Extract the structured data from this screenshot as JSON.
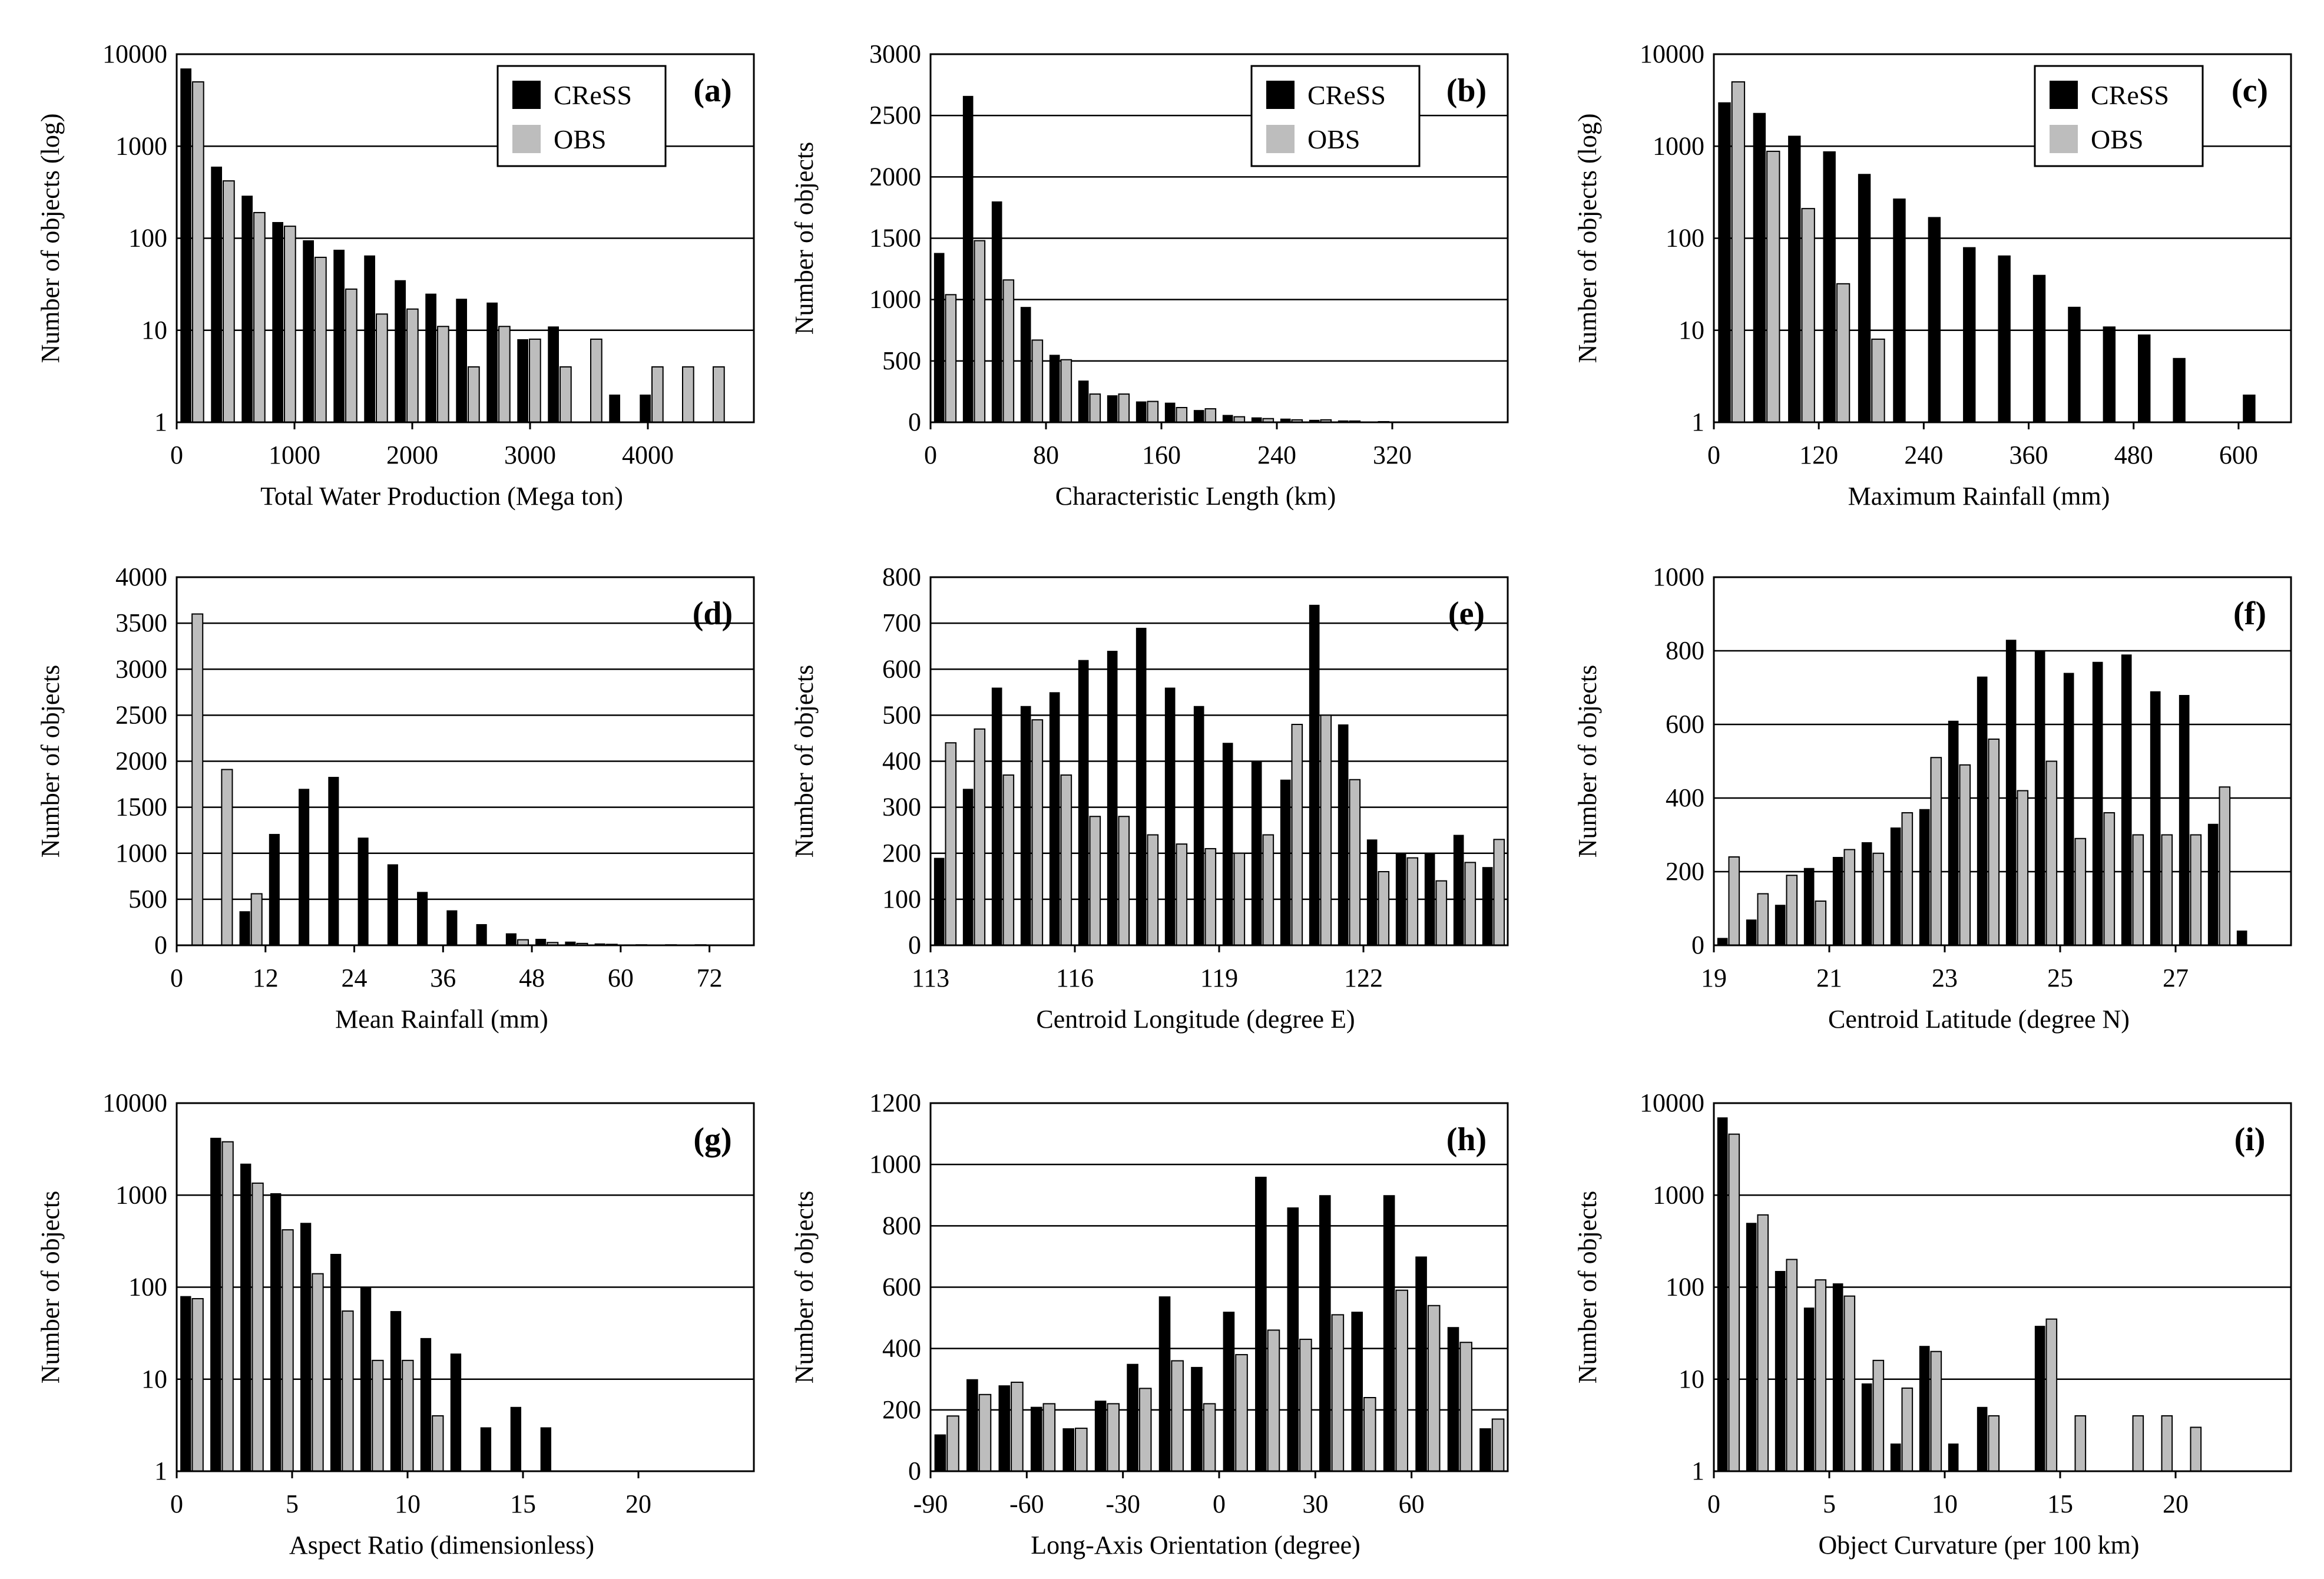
{
  "figure": {
    "panels": [
      "a",
      "b",
      "c",
      "d",
      "e",
      "f",
      "g",
      "h",
      "i"
    ]
  },
  "colors": {
    "cress": "#000000",
    "obs": "#bdbdbd",
    "grid": "#000000",
    "text": "#000000"
  },
  "chart_data": [
    {
      "id": "a",
      "label": "(a)",
      "type": "bar",
      "scale": "log",
      "xlabel": "Total Water Production (Mega ton)",
      "ylabel": "Number of objects (log)",
      "xlim": [
        0,
        4900
      ],
      "ylim": [
        1,
        10000
      ],
      "yticks": [
        1,
        10,
        100,
        1000,
        10000
      ],
      "yticklabels": [
        "1",
        "10",
        "100",
        "1000",
        "10000"
      ],
      "xticks": [
        0,
        1000,
        2000,
        3000,
        4000
      ],
      "xticklabels": [
        "0",
        "1000",
        "2000",
        "3000",
        "4000"
      ],
      "bin_width": 260,
      "legend": {
        "position": "top-right",
        "entries": [
          {
            "name": "CReSS",
            "color": "#000000"
          },
          {
            "name": "OBS",
            "color": "#bdbdbd"
          }
        ]
      },
      "x": [
        130,
        390,
        650,
        910,
        1170,
        1430,
        1690,
        1950,
        2210,
        2470,
        2730,
        2990,
        3250,
        3510,
        3770,
        4030,
        4290,
        4550
      ],
      "series": [
        {
          "name": "CReSS",
          "values": [
            7000,
            600,
            290,
            150,
            95,
            75,
            65,
            35,
            25,
            22,
            20,
            8,
            11,
            0,
            2,
            2,
            0,
            0
          ]
        },
        {
          "name": "OBS",
          "values": [
            5000,
            420,
            190,
            135,
            62,
            28,
            15,
            17,
            11,
            4,
            11,
            8,
            4,
            8,
            0,
            4,
            4,
            4
          ]
        }
      ]
    },
    {
      "id": "b",
      "label": "(b)",
      "type": "bar",
      "scale": "linear",
      "xlabel": "Characteristic Length (km)",
      "ylabel": "Number of objects",
      "xlim": [
        0,
        400
      ],
      "ylim": [
        0,
        3000
      ],
      "yticks": [
        0,
        500,
        1000,
        1500,
        2000,
        2500,
        3000
      ],
      "yticklabels": [
        "0",
        "500",
        "1000",
        "1500",
        "2000",
        "2500",
        "3000"
      ],
      "xticks": [
        0,
        80,
        160,
        240,
        320
      ],
      "xticklabels": [
        "0",
        "80",
        "160",
        "240",
        "320"
      ],
      "bin_width": 20,
      "legend": {
        "position": "top-right",
        "entries": [
          {
            "name": "CReSS",
            "color": "#000000"
          },
          {
            "name": "OBS",
            "color": "#bdbdbd"
          }
        ]
      },
      "x": [
        10,
        30,
        50,
        70,
        90,
        110,
        130,
        150,
        170,
        190,
        210,
        230,
        250,
        270,
        290,
        310,
        330,
        350,
        370,
        390
      ],
      "series": [
        {
          "name": "CReSS",
          "values": [
            1380,
            2660,
            1800,
            940,
            550,
            340,
            220,
            170,
            160,
            100,
            60,
            40,
            30,
            20,
            15,
            5,
            0,
            0,
            0,
            0
          ]
        },
        {
          "name": "OBS",
          "values": [
            1040,
            1480,
            1160,
            670,
            510,
            230,
            230,
            170,
            120,
            110,
            45,
            30,
            20,
            20,
            10,
            5,
            0,
            0,
            0,
            0
          ]
        }
      ]
    },
    {
      "id": "c",
      "label": "(c)",
      "type": "bar",
      "scale": "log",
      "xlabel": "Maximum Rainfall (mm)",
      "ylabel": "Number of objects (log)",
      "xlim": [
        0,
        660
      ],
      "ylim": [
        1,
        10000
      ],
      "yticks": [
        1,
        10,
        100,
        1000,
        10000
      ],
      "yticklabels": [
        "1",
        "10",
        "100",
        "1000",
        "10000"
      ],
      "xticks": [
        0,
        120,
        240,
        360,
        480,
        600
      ],
      "xticklabels": [
        "0",
        "120",
        "240",
        "360",
        "480",
        "600"
      ],
      "bin_width": 40,
      "legend": {
        "position": "top-right",
        "entries": [
          {
            "name": "CReSS",
            "color": "#000000"
          },
          {
            "name": "OBS",
            "color": "#bdbdbd"
          }
        ]
      },
      "x": [
        20,
        60,
        100,
        140,
        180,
        220,
        260,
        300,
        340,
        380,
        420,
        460,
        500,
        540,
        580,
        620
      ],
      "series": [
        {
          "name": "CReSS",
          "values": [
            3000,
            2300,
            1300,
            880,
            500,
            270,
            170,
            80,
            65,
            40,
            18,
            11,
            9,
            5,
            0,
            2
          ]
        },
        {
          "name": "OBS",
          "values": [
            5000,
            880,
            210,
            32,
            8,
            0,
            0,
            0,
            0,
            0,
            0,
            0,
            0,
            0,
            0,
            0
          ]
        }
      ]
    },
    {
      "id": "d",
      "label": "(d)",
      "type": "bar",
      "scale": "linear",
      "xlabel": "Mean Rainfall (mm)",
      "ylabel": "Number of objects",
      "xlim": [
        0,
        78
      ],
      "ylim": [
        0,
        4000
      ],
      "yticks": [
        0,
        500,
        1000,
        1500,
        2000,
        2500,
        3000,
        3500,
        4000
      ],
      "yticklabels": [
        "0",
        "500",
        "1000",
        "1500",
        "2000",
        "2500",
        "3000",
        "3500",
        "4000"
      ],
      "xticks": [
        0,
        12,
        24,
        36,
        48,
        60,
        72
      ],
      "xticklabels": [
        "0",
        "12",
        "24",
        "36",
        "48",
        "60",
        "72"
      ],
      "bin_width": 4,
      "legend": null,
      "x": [
        2,
        6,
        10,
        14,
        18,
        22,
        26,
        30,
        34,
        38,
        42,
        46,
        50,
        54,
        58,
        62,
        66,
        70,
        74
      ],
      "series": [
        {
          "name": "CReSS",
          "values": [
            0,
            0,
            370,
            1210,
            1700,
            1830,
            1170,
            880,
            580,
            380,
            230,
            130,
            70,
            40,
            20,
            10,
            5,
            5,
            5
          ]
        },
        {
          "name": "OBS",
          "values": [
            3600,
            1910,
            560,
            0,
            0,
            0,
            0,
            0,
            0,
            0,
            0,
            60,
            30,
            20,
            10,
            5,
            5,
            5,
            0
          ]
        }
      ]
    },
    {
      "id": "e",
      "label": "(e)",
      "type": "bar",
      "scale": "linear",
      "xlabel": "Centroid Longitude (degree E)",
      "ylabel": "Number of objects",
      "xlim": [
        113,
        125
      ],
      "ylim": [
        0,
        800
      ],
      "yticks": [
        0,
        100,
        200,
        300,
        400,
        500,
        600,
        700,
        800
      ],
      "yticklabels": [
        "0",
        "100",
        "200",
        "300",
        "400",
        "500",
        "600",
        "700",
        "800"
      ],
      "xticks": [
        113,
        116,
        119,
        122
      ],
      "xticklabels": [
        "113",
        "116",
        "119",
        "122"
      ],
      "bin_width": 0.6,
      "legend": null,
      "x": [
        113.3,
        113.9,
        114.5,
        115.1,
        115.7,
        116.3,
        116.9,
        117.5,
        118.1,
        118.7,
        119.3,
        119.9,
        120.5,
        121.1,
        121.7,
        122.3,
        122.9,
        123.5,
        124.1,
        124.7
      ],
      "series": [
        {
          "name": "CReSS",
          "values": [
            190,
            340,
            560,
            520,
            550,
            620,
            640,
            690,
            560,
            520,
            440,
            400,
            360,
            740,
            480,
            230,
            200,
            200,
            240,
            170
          ]
        },
        {
          "name": "OBS",
          "values": [
            440,
            470,
            370,
            490,
            370,
            280,
            280,
            240,
            220,
            210,
            200,
            240,
            480,
            500,
            360,
            160,
            190,
            140,
            180,
            230
          ]
        }
      ]
    },
    {
      "id": "f",
      "label": "(f)",
      "type": "bar",
      "scale": "linear",
      "xlabel": "Centroid Latitude (degree N)",
      "ylabel": "Number of objects",
      "xlim": [
        19,
        29
      ],
      "ylim": [
        0,
        1000
      ],
      "yticks": [
        0,
        200,
        400,
        600,
        800,
        1000
      ],
      "yticklabels": [
        "0",
        "200",
        "400",
        "600",
        "800",
        "1000"
      ],
      "xticks": [
        19,
        21,
        23,
        25,
        27
      ],
      "xticklabels": [
        "19",
        "21",
        "23",
        "25",
        "27"
      ],
      "bin_width": 0.5,
      "legend": null,
      "x": [
        19.25,
        19.75,
        20.25,
        20.75,
        21.25,
        21.75,
        22.25,
        22.75,
        23.25,
        23.75,
        24.25,
        24.75,
        25.25,
        25.75,
        26.25,
        26.75,
        27.25,
        27.75,
        28.25
      ],
      "series": [
        {
          "name": "CReSS",
          "values": [
            20,
            70,
            110,
            210,
            240,
            280,
            320,
            370,
            610,
            730,
            830,
            800,
            740,
            770,
            790,
            690,
            680,
            330,
            40
          ]
        },
        {
          "name": "OBS",
          "values": [
            240,
            140,
            190,
            120,
            260,
            250,
            360,
            510,
            490,
            560,
            420,
            500,
            290,
            360,
            300,
            300,
            300,
            430,
            0
          ]
        }
      ]
    },
    {
      "id": "g",
      "label": "(g)",
      "type": "bar",
      "scale": "log",
      "xlabel": "Aspect Ratio (dimensionless)",
      "ylabel": "Number of objects",
      "xlim": [
        0,
        25
      ],
      "ylim": [
        1,
        10000
      ],
      "yticks": [
        1,
        10,
        100,
        1000,
        10000
      ],
      "yticklabels": [
        "1",
        "10",
        "100",
        "1000",
        "10000"
      ],
      "xticks": [
        0,
        5,
        10,
        15,
        20
      ],
      "xticklabels": [
        "0",
        "5",
        "10",
        "15",
        "20"
      ],
      "bin_width": 1.3,
      "legend": null,
      "x": [
        0.65,
        1.95,
        3.25,
        4.55,
        5.85,
        7.15,
        8.45,
        9.75,
        11.05,
        12.35,
        13.65,
        14.95,
        16.25,
        17.55,
        18.85,
        20.15,
        21.45,
        22.75,
        24.05
      ],
      "series": [
        {
          "name": "CReSS",
          "values": [
            80,
            4200,
            2200,
            1050,
            500,
            230,
            100,
            55,
            28,
            19,
            3,
            5,
            3,
            0,
            0,
            0,
            0,
            0,
            0
          ]
        },
        {
          "name": "OBS",
          "values": [
            75,
            3800,
            1350,
            420,
            140,
            55,
            16,
            16,
            4,
            0,
            0,
            0,
            0,
            0,
            0,
            0,
            0,
            0,
            0
          ]
        }
      ]
    },
    {
      "id": "h",
      "label": "(h)",
      "type": "bar",
      "scale": "linear",
      "xlabel": "Long-Axis Orientation (degree)",
      "ylabel": "Number of objects",
      "xlim": [
        -90,
        90
      ],
      "ylim": [
        0,
        1200
      ],
      "yticks": [
        0,
        200,
        400,
        600,
        800,
        1000,
        1200
      ],
      "yticklabels": [
        "0",
        "200",
        "400",
        "600",
        "800",
        "1000",
        "1200"
      ],
      "xticks": [
        -90,
        -60,
        -30,
        0,
        30,
        60
      ],
      "xticklabels": [
        "-90",
        "-60",
        "-30",
        "0",
        "30",
        "60"
      ],
      "bin_width": 10,
      "legend": null,
      "x": [
        -85,
        -75,
        -65,
        -55,
        -45,
        -35,
        -25,
        -15,
        -5,
        5,
        15,
        25,
        35,
        45,
        55,
        65,
        75,
        85
      ],
      "series": [
        {
          "name": "CReSS",
          "values": [
            120,
            300,
            280,
            210,
            140,
            230,
            350,
            570,
            340,
            520,
            960,
            860,
            900,
            520,
            900,
            700,
            470,
            140
          ]
        },
        {
          "name": "OBS",
          "values": [
            180,
            250,
            290,
            220,
            140,
            220,
            270,
            360,
            220,
            380,
            460,
            430,
            510,
            240,
            590,
            540,
            420,
            170
          ]
        }
      ]
    },
    {
      "id": "i",
      "label": "(i)",
      "type": "bar",
      "scale": "log",
      "xlabel": "Object Curvature (per 100 km)",
      "ylabel": "Number of objects",
      "xlim": [
        0,
        25
      ],
      "ylim": [
        1,
        10000
      ],
      "yticks": [
        1,
        10,
        100,
        1000,
        10000
      ],
      "yticklabels": [
        "1",
        "10",
        "100",
        "1000",
        "10000"
      ],
      "xticks": [
        0,
        5,
        10,
        15,
        20
      ],
      "xticklabels": [
        "0",
        "5",
        "10",
        "15",
        "20"
      ],
      "bin_width": 1.25,
      "legend": null,
      "x": [
        0.625,
        1.875,
        3.125,
        4.375,
        5.625,
        6.875,
        8.125,
        9.375,
        10.625,
        11.875,
        13.125,
        14.375,
        15.625,
        16.875,
        18.125,
        19.375,
        20.625,
        21.875,
        23.125
      ],
      "series": [
        {
          "name": "CReSS",
          "values": [
            7000,
            500,
            150,
            60,
            110,
            9,
            2,
            23,
            2,
            5,
            0,
            38,
            0,
            0,
            0,
            0,
            0,
            0,
            0
          ]
        },
        {
          "name": "OBS",
          "values": [
            4600,
            610,
            200,
            120,
            80,
            16,
            8,
            20,
            0,
            4,
            0,
            45,
            4,
            0,
            4,
            4,
            3,
            0,
            0
          ]
        }
      ]
    }
  ]
}
